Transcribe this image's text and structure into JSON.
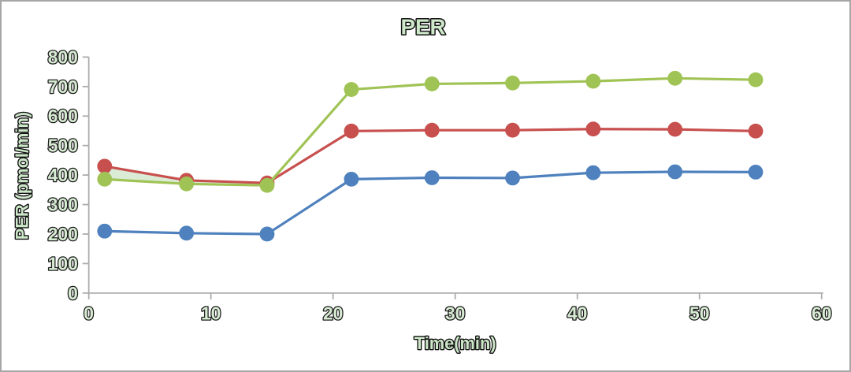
{
  "frame": {
    "border_color": "#A6A6A6",
    "background_color": "#FFFFFF"
  },
  "chart_data": {
    "type": "line",
    "title": "PER",
    "xlabel": "Time(min)",
    "ylabel": "PER (pmol/min)",
    "xlim": [
      0,
      60
    ],
    "ylim": [
      0,
      800
    ],
    "x_ticks": [
      0,
      10,
      20,
      30,
      40,
      50,
      60
    ],
    "y_ticks": [
      0,
      100,
      200,
      300,
      400,
      500,
      600,
      700,
      800
    ],
    "grid": "off",
    "legend": "none",
    "marker": "circle",
    "x": [
      1.3,
      8.0,
      14.6,
      21.5,
      28.1,
      34.7,
      41.3,
      48.0,
      54.6
    ],
    "series": [
      {
        "name": "red",
        "color": "#C7504E",
        "values": [
          430,
          382,
          373,
          549,
          552,
          552,
          556,
          555,
          549
        ]
      },
      {
        "name": "green",
        "color": "#A0C355",
        "values": [
          386,
          370,
          365,
          690,
          709,
          712,
          718,
          728,
          723
        ]
      },
      {
        "name": "blue",
        "color": "#4E81BD",
        "values": [
          210,
          203,
          200,
          386,
          391,
          390,
          408,
          411,
          410
        ]
      }
    ],
    "band_between": {
      "upper": "red",
      "lower": "green",
      "x_range": [
        1.3,
        14.6
      ],
      "fill": "#D6E9D2"
    },
    "axis_color": "#ACACAC",
    "tick_label_fill": "#D8ECD4",
    "tick_label_outline": "#1C1C1C"
  }
}
